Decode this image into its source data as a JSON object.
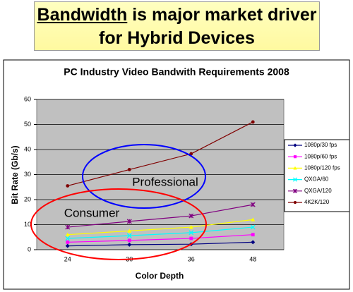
{
  "slide_title": {
    "underlined": "Bandwidth",
    "rest": "is major market driver",
    "line2": "for Hybrid Devices"
  },
  "chart_data": {
    "type": "line",
    "title": "PC Industry Video Bandwith Requirements 2008",
    "x_label": "Color Depth",
    "y_label": "Bit Rate (Gb/s)",
    "categories": [
      "24",
      "30",
      "36",
      "48"
    ],
    "ylim": [
      0,
      60
    ],
    "yticks": [
      0,
      10,
      20,
      30,
      40,
      50,
      60
    ],
    "grid": true,
    "annotations": [
      "Professional",
      "Consumer"
    ],
    "series": [
      {
        "name": "1080p/30 fps",
        "color": "#000080",
        "marker": "diamond",
        "values": [
          1.5,
          2.0,
          2.2,
          3.0
        ]
      },
      {
        "name": "1080p/60 fps",
        "color": "#ff00ff",
        "marker": "square",
        "values": [
          3.0,
          3.7,
          4.5,
          6.0
        ]
      },
      {
        "name": "1080p/120 fps",
        "color": "#ffff00",
        "marker": "triangle",
        "values": [
          6.0,
          7.5,
          9.0,
          12.0
        ]
      },
      {
        "name": "QXGA/60",
        "color": "#00ffff",
        "marker": "x",
        "values": [
          4.5,
          5.6,
          6.8,
          9.0
        ]
      },
      {
        "name": "QXGA/120",
        "color": "#800080",
        "marker": "star",
        "values": [
          9.0,
          11.3,
          13.5,
          18.0
        ]
      },
      {
        "name": "4K2K/120",
        "color": "#800000",
        "marker": "circle",
        "values": [
          25.5,
          32.0,
          38.3,
          51.0
        ]
      }
    ]
  }
}
